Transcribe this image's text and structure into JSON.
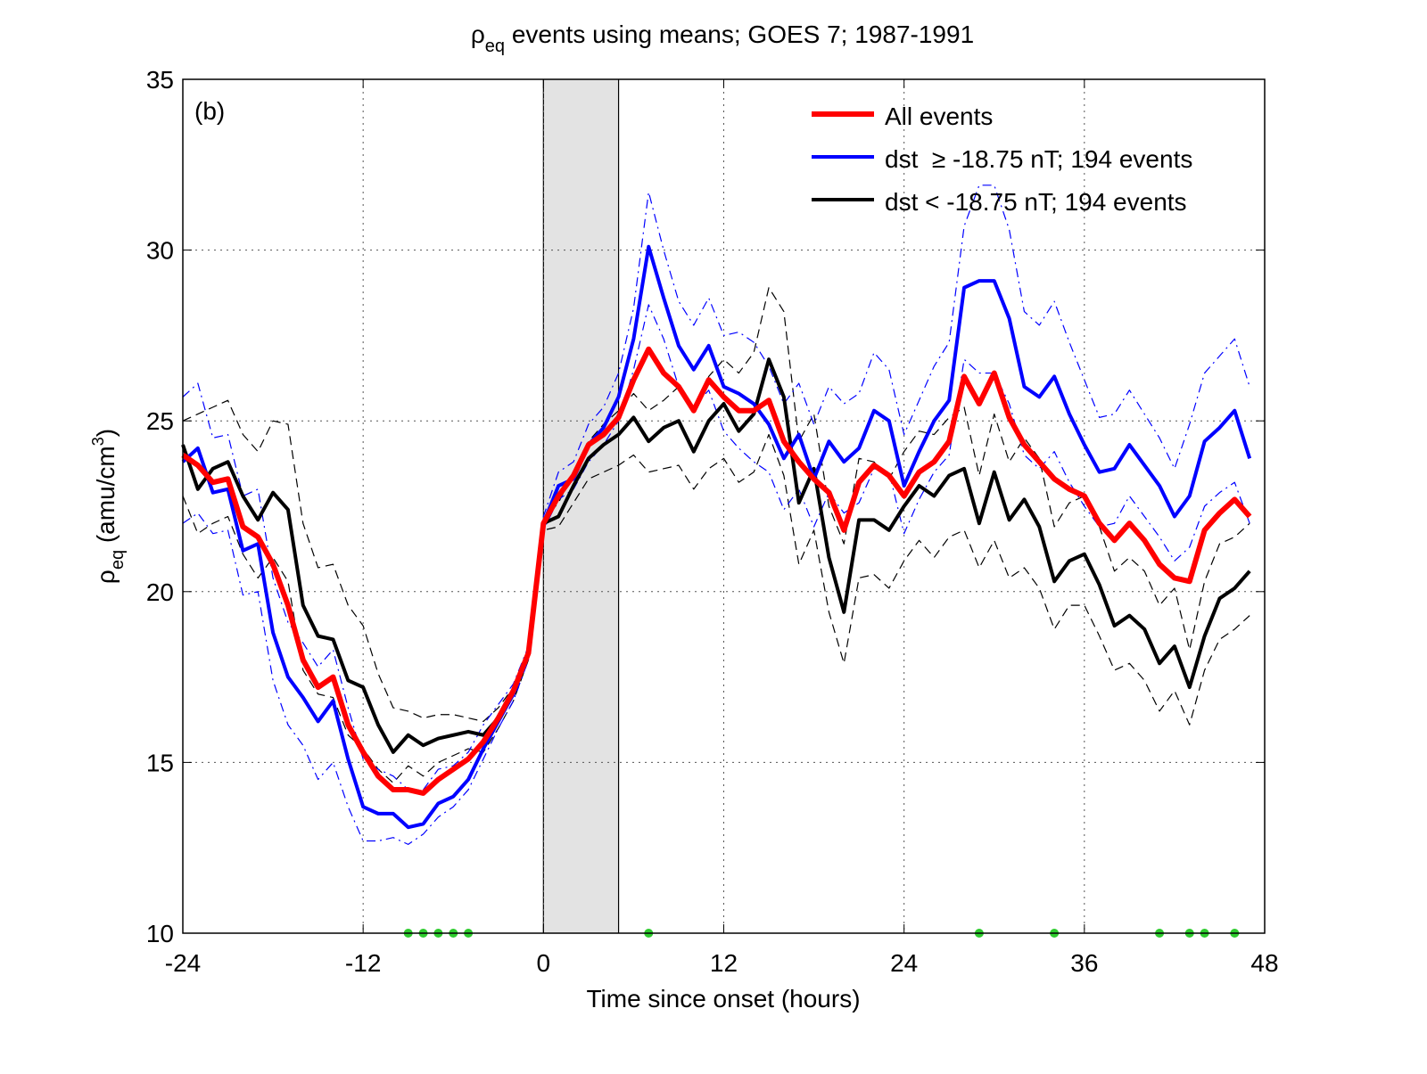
{
  "chart_data": {
    "type": "line",
    "title": {
      "symbol": "ρ",
      "subscript": "eq",
      "text": " events using means; GOES 7; 1987-1991"
    },
    "xlabel": "Time since onset (hours)",
    "ylabel": {
      "symbol": "ρ",
      "subscript": "eq",
      "text": " (amu/cm",
      "superscript": "3",
      "close": ")"
    },
    "annotation": "(b)",
    "xlim": [
      -24,
      48
    ],
    "ylim": [
      10,
      35
    ],
    "xticks": [
      -24,
      -12,
      0,
      12,
      24,
      36,
      48
    ],
    "yticks": [
      10,
      15,
      20,
      25,
      30,
      35
    ],
    "grid": true,
    "legend": "upper right",
    "shaded_span": {
      "x": [
        0,
        5
      ],
      "color": "#e3e3e3"
    },
    "event_markers": {
      "color": "#2ecc2e",
      "x": [
        -9,
        -8,
        -7,
        -6,
        -5,
        7,
        29,
        34,
        41,
        43,
        44,
        46
      ]
    },
    "x": [
      -24,
      -23,
      -22,
      -21,
      -20,
      -19,
      -18,
      -17,
      -16,
      -15,
      -14,
      -13,
      -12,
      -11,
      -10,
      -9,
      -8,
      -7,
      -6,
      -5,
      -4,
      -3,
      -2,
      -1,
      0,
      1,
      2,
      3,
      4,
      5,
      6,
      7,
      8,
      9,
      10,
      11,
      12,
      13,
      14,
      15,
      16,
      17,
      18,
      19,
      20,
      21,
      22,
      23,
      24,
      25,
      26,
      27,
      28,
      29,
      30,
      31,
      32,
      33,
      34,
      35,
      36,
      37,
      38,
      39,
      40,
      41,
      42,
      43,
      44,
      45,
      46,
      47
    ],
    "series": [
      {
        "name": "All events",
        "color": "#ff0000",
        "width": 6,
        "style": "solid",
        "values": [
          24.0,
          23.7,
          23.2,
          23.3,
          21.9,
          21.6,
          20.8,
          19.6,
          18.0,
          17.2,
          17.5,
          16.1,
          15.3,
          14.6,
          14.2,
          14.2,
          14.1,
          14.5,
          14.8,
          15.1,
          15.6,
          16.3,
          17.1,
          18.2,
          22.0,
          22.8,
          23.4,
          24.3,
          24.6,
          25.1,
          26.2,
          27.1,
          26.4,
          26.0,
          25.3,
          26.2,
          25.7,
          25.3,
          25.3,
          25.6,
          24.4,
          23.8,
          23.3,
          22.9,
          21.8,
          23.2,
          23.7,
          23.4,
          22.8,
          23.5,
          23.8,
          24.4,
          26.3,
          25.5,
          26.4,
          25.1,
          24.3,
          23.8,
          23.3,
          23.0,
          22.8,
          22.0,
          21.5,
          22.0,
          21.5,
          20.8,
          20.4,
          20.3,
          21.8,
          22.3,
          22.7,
          22.2
        ]
      },
      {
        "name": "dst  ≥ -18.75 nT; 194 events",
        "color": "#0000ff",
        "width": 4,
        "style": "solid",
        "values": [
          23.8,
          24.2,
          22.9,
          23.0,
          21.2,
          21.4,
          18.8,
          17.5,
          16.9,
          16.2,
          16.8,
          15.1,
          13.7,
          13.5,
          13.5,
          13.1,
          13.2,
          13.8,
          14.0,
          14.5,
          15.4,
          16.2,
          17.0,
          18.2,
          22.0,
          23.1,
          23.3,
          24.3,
          24.8,
          25.7,
          27.4,
          30.1,
          28.6,
          27.2,
          26.5,
          27.2,
          26.0,
          25.8,
          25.5,
          24.9,
          23.9,
          24.6,
          23.3,
          24.4,
          23.8,
          24.2,
          25.3,
          25.0,
          23.1,
          24.1,
          25.0,
          25.6,
          28.9,
          29.1,
          29.1,
          28.0,
          26.0,
          25.7,
          26.3,
          25.2,
          24.3,
          23.5,
          23.6,
          24.3,
          23.7,
          23.1,
          22.2,
          22.8,
          24.4,
          24.8,
          25.3,
          23.9
        ]
      },
      {
        "name": "dst < -18.75 nT; 194 events",
        "color": "#000000",
        "width": 4,
        "style": "solid",
        "values": [
          24.3,
          23.0,
          23.6,
          23.8,
          22.8,
          22.1,
          22.9,
          22.4,
          19.6,
          18.7,
          18.6,
          17.4,
          17.2,
          16.1,
          15.3,
          15.8,
          15.5,
          15.7,
          15.8,
          15.9,
          15.8,
          16.3,
          17.0,
          18.2,
          22.0,
          22.2,
          23.1,
          23.9,
          24.3,
          24.6,
          25.1,
          24.4,
          24.8,
          25.0,
          24.1,
          25.0,
          25.5,
          24.7,
          25.2,
          26.8,
          25.7,
          22.6,
          23.6,
          21.0,
          19.4,
          22.1,
          22.1,
          21.8,
          22.5,
          23.1,
          22.8,
          23.4,
          23.6,
          22.0,
          23.5,
          22.1,
          22.7,
          21.9,
          20.3,
          20.9,
          21.1,
          20.2,
          19.0,
          19.3,
          18.9,
          17.9,
          18.4,
          17.2,
          18.7,
          19.8,
          20.1,
          20.6
        ]
      },
      {
        "color": "#0000ff",
        "width": 1.2,
        "style": "dashdot",
        "values": [
          25.7,
          26.1,
          24.5,
          24.6,
          22.8,
          23.0,
          20.4,
          19.1,
          18.5,
          17.8,
          18.3,
          16.6,
          15.1,
          14.8,
          14.6,
          14.2,
          14.2,
          14.8,
          14.9,
          15.3,
          16.1,
          16.7,
          17.3,
          18.4,
          22.2,
          23.5,
          23.8,
          24.9,
          25.4,
          26.4,
          28.3,
          31.7,
          30.0,
          28.5,
          27.8,
          28.6,
          27.5,
          27.6,
          27.3,
          26.6,
          25.5,
          26.1,
          24.9,
          26.0,
          25.5,
          25.8,
          27.0,
          26.5,
          24.6,
          25.6,
          26.6,
          27.3,
          30.7,
          31.9,
          31.9,
          30.6,
          28.2,
          27.8,
          28.5,
          27.3,
          26.2,
          25.1,
          25.2,
          25.9,
          25.2,
          24.5,
          23.6,
          24.9,
          26.4,
          26.9,
          27.4,
          26.0
        ]
      },
      {
        "color": "#0000ff",
        "width": 1.2,
        "style": "dashdot",
        "values": [
          22.0,
          22.3,
          21.7,
          21.8,
          19.9,
          20.0,
          17.4,
          16.1,
          15.5,
          14.5,
          15.0,
          13.7,
          12.7,
          12.7,
          12.8,
          12.6,
          12.9,
          13.4,
          13.7,
          14.2,
          15.1,
          16.0,
          16.8,
          18.0,
          21.8,
          22.7,
          23.0,
          23.8,
          24.3,
          25.0,
          26.5,
          28.4,
          27.4,
          26.0,
          25.4,
          25.9,
          24.7,
          24.2,
          23.8,
          23.5,
          22.4,
          23.0,
          21.9,
          22.9,
          22.3,
          22.6,
          23.6,
          23.5,
          21.7,
          22.7,
          23.5,
          24.0,
          26.8,
          26.4,
          26.4,
          25.5,
          24.0,
          23.6,
          24.1,
          23.2,
          22.5,
          21.9,
          22.0,
          22.8,
          22.2,
          21.6,
          20.9,
          21.3,
          22.5,
          22.9,
          23.2,
          22.0
        ]
      },
      {
        "color": "#000000",
        "width": 1.2,
        "style": "dashed",
        "values": [
          25.0,
          25.2,
          25.4,
          25.6,
          24.6,
          24.1,
          25.0,
          24.9,
          22.0,
          20.7,
          20.8,
          19.6,
          19.0,
          17.6,
          16.6,
          16.5,
          16.3,
          16.4,
          16.4,
          16.3,
          16.2,
          16.6,
          17.2,
          18.3,
          22.1,
          22.6,
          23.5,
          24.4,
          24.9,
          25.3,
          25.8,
          25.3,
          25.6,
          26.0,
          25.3,
          26.3,
          26.8,
          26.4,
          27.0,
          28.9,
          28.2,
          24.4,
          25.2,
          22.5,
          21.4,
          23.9,
          23.8,
          23.3,
          24.1,
          24.7,
          24.6,
          25.1,
          25.4,
          23.4,
          25.2,
          23.8,
          24.5,
          23.9,
          21.9,
          22.6,
          22.8,
          21.9,
          20.6,
          21.0,
          20.6,
          19.6,
          20.1,
          18.3,
          20.3,
          21.4,
          21.6,
          22.0
        ]
      },
      {
        "color": "#000000",
        "width": 1.2,
        "style": "dashed",
        "values": [
          22.8,
          21.7,
          22.0,
          22.2,
          21.1,
          20.4,
          21.0,
          20.3,
          17.7,
          17.0,
          16.9,
          15.8,
          15.4,
          14.8,
          14.4,
          14.9,
          14.6,
          15.0,
          15.2,
          15.4,
          15.3,
          16.0,
          16.8,
          18.0,
          21.8,
          21.9,
          22.6,
          23.3,
          23.5,
          23.7,
          24.0,
          23.5,
          23.6,
          23.7,
          23.0,
          23.6,
          23.9,
          23.2,
          23.5,
          24.6,
          23.4,
          20.8,
          21.8,
          19.4,
          17.9,
          20.4,
          20.5,
          20.1,
          20.9,
          21.5,
          21.0,
          21.6,
          21.8,
          20.7,
          21.5,
          20.4,
          20.7,
          20.1,
          18.9,
          19.6,
          19.6,
          18.7,
          17.7,
          17.9,
          17.4,
          16.5,
          17.1,
          16.1,
          17.7,
          18.6,
          18.9,
          19.3
        ]
      }
    ]
  }
}
